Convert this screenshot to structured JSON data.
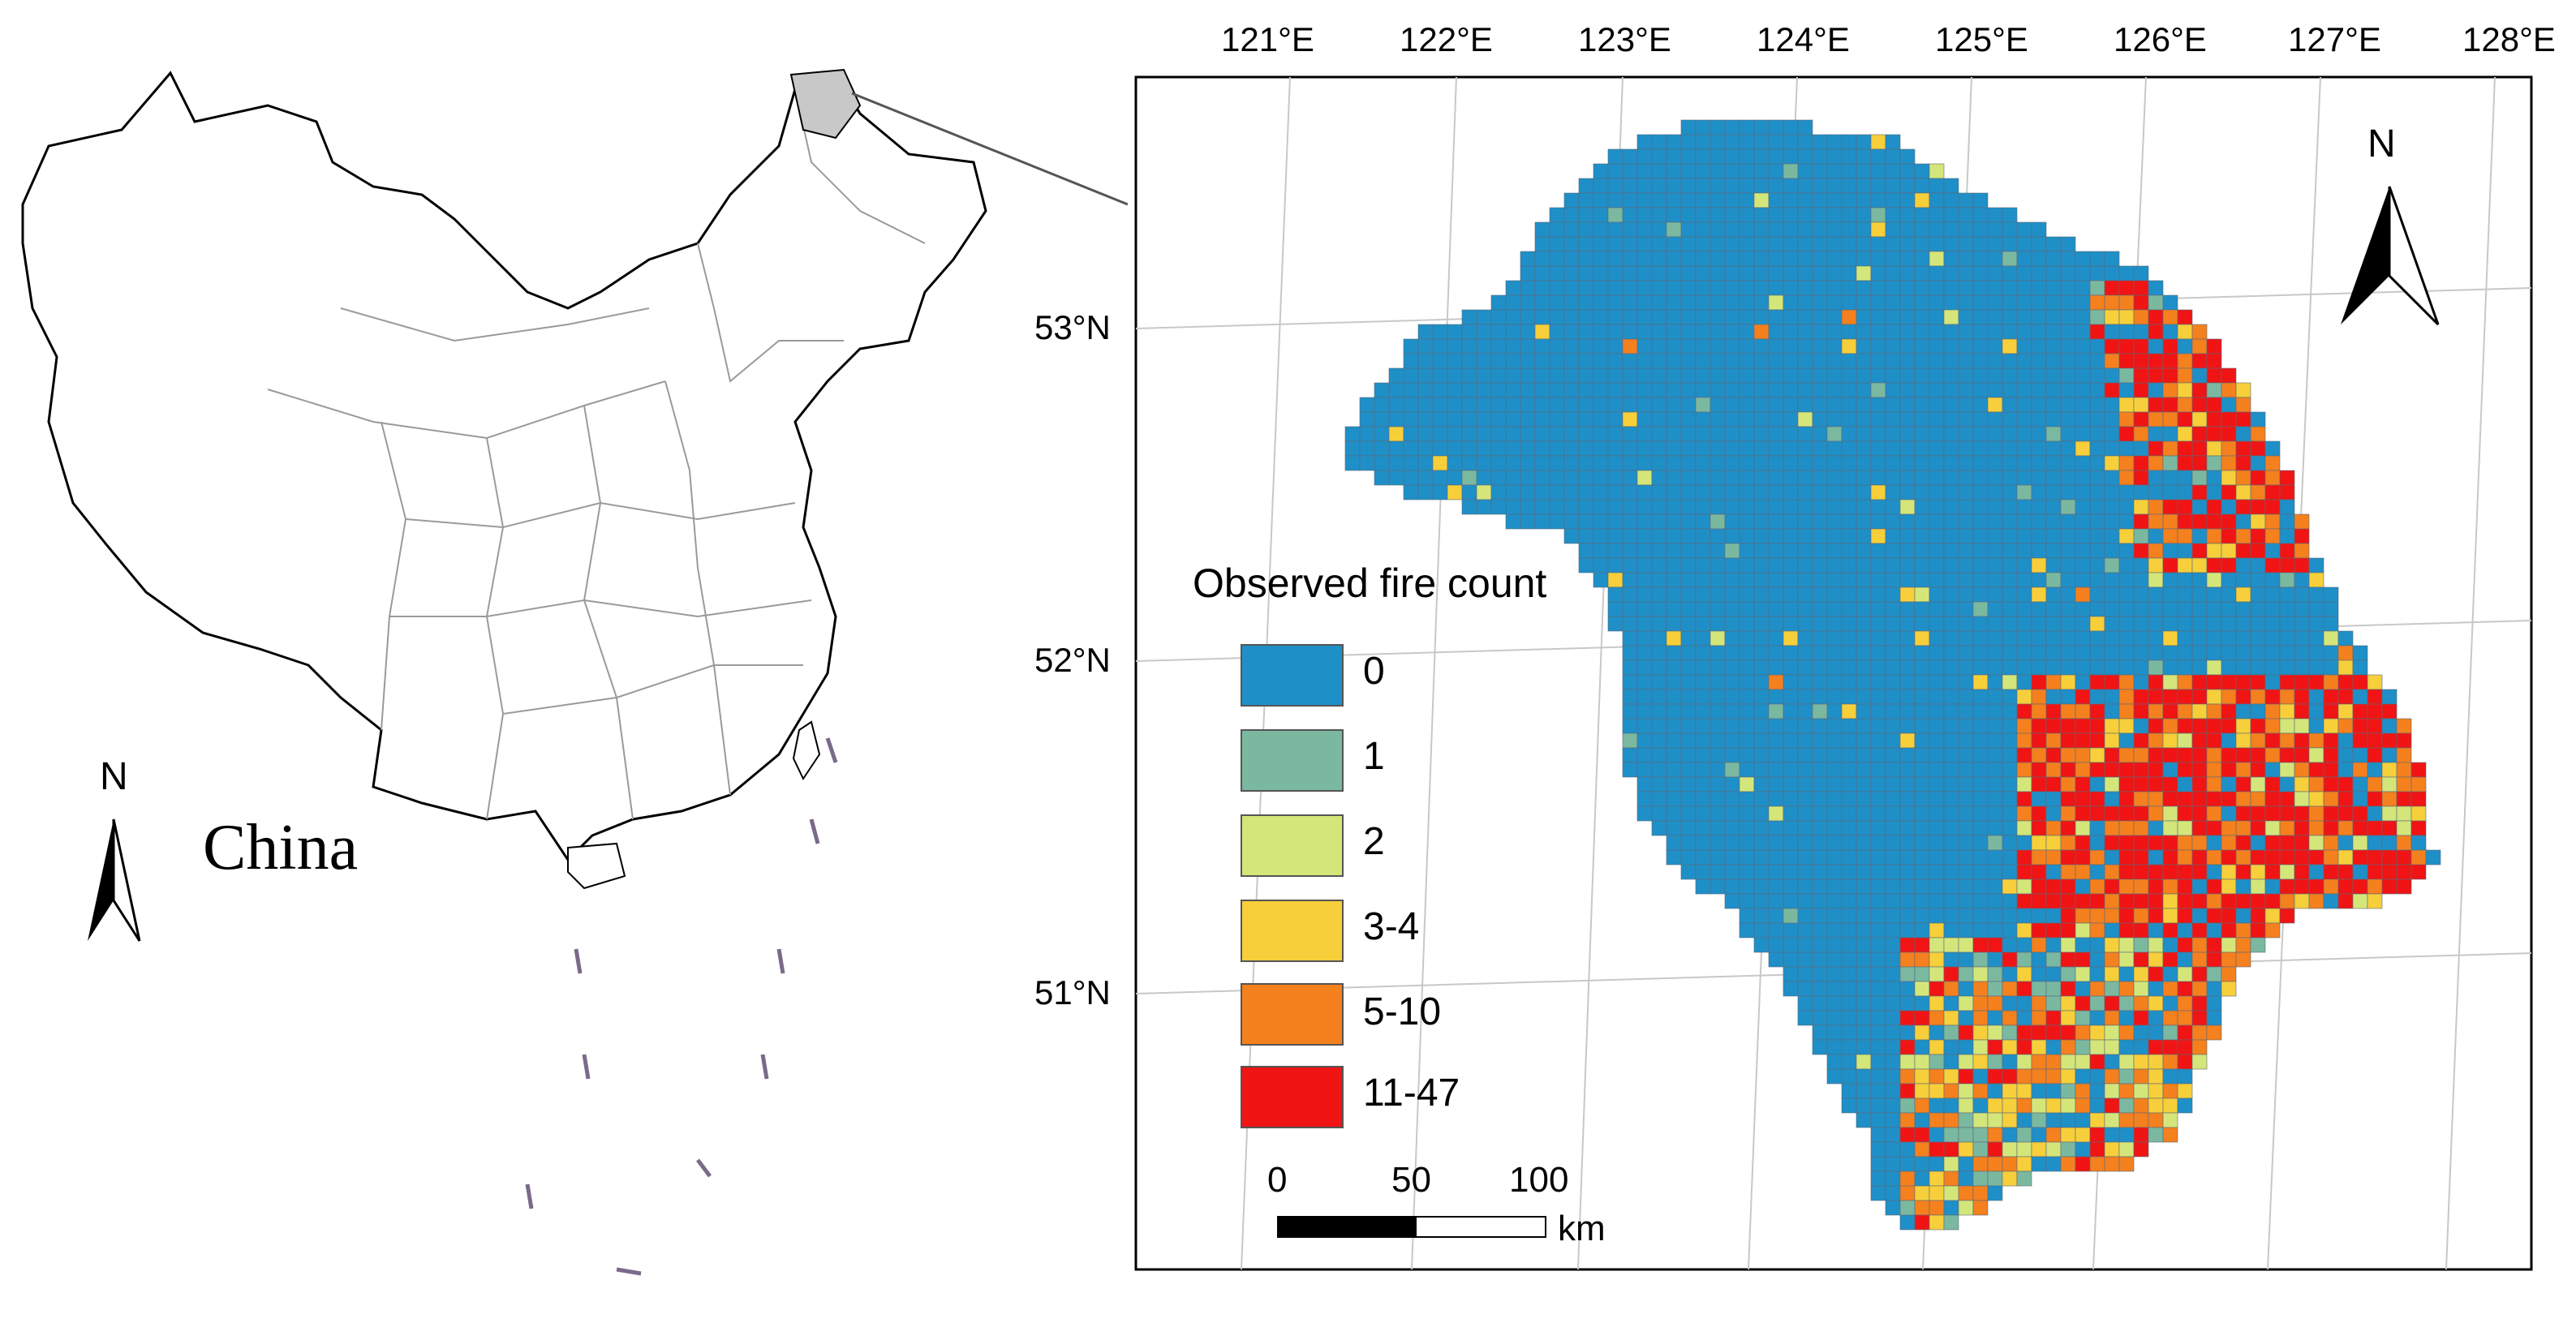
{
  "china_map": {
    "label": "China",
    "north": "N"
  },
  "fire_map": {
    "north": "N",
    "lon_labels": [
      "121°E",
      "122°E",
      "123°E",
      "124°E",
      "125°E",
      "126°E",
      "127°E",
      "128°E"
    ],
    "lat_labels": [
      "53°N",
      "52°N",
      "51°N"
    ],
    "legend": {
      "title": "Observed fire count",
      "classes": [
        {
          "label": "0",
          "color": "#1f8fc8"
        },
        {
          "label": "1",
          "color": "#7bb8a0"
        },
        {
          "label": "2",
          "color": "#d4e67a"
        },
        {
          "label": "3-4",
          "color": "#f7cf3a"
        },
        {
          "label": "5-10",
          "color": "#f5801e"
        },
        {
          "label": "11-47",
          "color": "#f01414"
        }
      ]
    },
    "scale_bar": {
      "ticks": [
        "0",
        "50",
        "100"
      ],
      "unit": "km"
    }
  }
}
